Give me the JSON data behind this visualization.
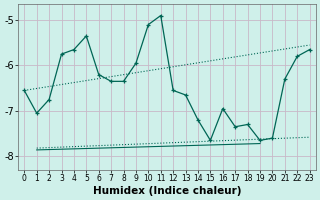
{
  "xlabel": "Humidex (Indice chaleur)",
  "bg_color": "#cff0ea",
  "grid_color": "#c9b8c8",
  "line_color": "#006655",
  "xlim": [
    -0.5,
    23.5
  ],
  "ylim": [
    -8.3,
    -4.65
  ],
  "yticks": [
    -8,
    -7,
    -6,
    -5
  ],
  "xticks": [
    0,
    1,
    2,
    3,
    4,
    5,
    6,
    7,
    8,
    9,
    10,
    11,
    12,
    13,
    14,
    15,
    16,
    17,
    18,
    19,
    20,
    21,
    22,
    23
  ],
  "main_line_x": [
    0,
    1,
    2,
    3,
    4,
    5,
    6,
    7,
    8,
    9,
    10,
    11,
    12,
    13,
    14,
    15,
    16,
    17,
    18,
    19,
    20,
    21,
    22,
    23
  ],
  "main_line_y": [
    -6.55,
    -7.05,
    -6.75,
    -5.75,
    -5.65,
    -5.35,
    -6.2,
    -6.35,
    -6.35,
    -5.95,
    -5.1,
    -4.9,
    -6.55,
    -6.65,
    -7.2,
    -7.65,
    -6.95,
    -7.35,
    -7.3,
    -7.65,
    -7.6,
    -6.3,
    -5.8,
    -5.65
  ],
  "trend_line1_x": [
    0,
    23
  ],
  "trend_line1_y": [
    -6.55,
    -5.55
  ],
  "trend_line2_x": [
    1,
    23
  ],
  "trend_line2_y": [
    -7.82,
    -7.58
  ],
  "trend_line3_x": [
    1,
    19
  ],
  "trend_line3_y": [
    -7.86,
    -7.72
  ],
  "xtick_fontsize": 5.5,
  "ytick_fontsize": 7.0,
  "xlabel_fontsize": 7.5
}
